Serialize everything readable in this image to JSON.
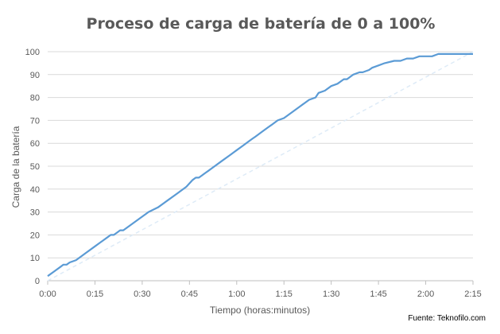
{
  "chart_data": {
    "type": "line",
    "title": "Proceso de carga de batería de 0 a 100%",
    "xlabel": "Tiempo (horas:minutos)",
    "ylabel": "Carga de la batería",
    "source": "Fuente: Teknofilo.com",
    "x_ticks": [
      "0:00",
      "0:15",
      "0:30",
      "0:45",
      "1:00",
      "1:15",
      "1:30",
      "1:45",
      "2:00",
      "2:15"
    ],
    "x_range_minutes": [
      0,
      135
    ],
    "y_ticks": [
      "0",
      "10",
      "20",
      "30",
      "40",
      "50",
      "60",
      "70",
      "80",
      "90",
      "100"
    ],
    "ylim": [
      0,
      100
    ],
    "grid": true,
    "series": [
      {
        "style": "solid",
        "color": "#5b9bd5",
        "x": [
          0,
          2,
          4,
          5,
          6,
          7,
          9,
          12,
          15,
          19,
          20,
          21,
          22,
          23,
          24,
          27,
          30,
          31,
          32,
          35,
          38,
          41,
          44,
          46,
          47,
          48,
          49,
          50,
          51,
          52,
          55,
          58,
          59,
          60,
          62,
          64,
          65,
          66,
          68,
          70,
          71,
          73,
          75,
          76,
          78,
          80,
          81,
          83,
          85,
          86,
          88,
          90,
          92,
          94,
          95,
          97,
          99,
          100,
          102,
          103,
          105,
          107,
          110,
          112,
          114,
          116,
          118,
          120,
          121,
          122,
          124,
          126,
          128,
          129,
          130,
          132,
          135
        ],
        "y": [
          2,
          4,
          6,
          7,
          7,
          8,
          9,
          12,
          15,
          19,
          20,
          20,
          21,
          22,
          22,
          25,
          28,
          29,
          30,
          32,
          35,
          38,
          41,
          44,
          45,
          45,
          46,
          47,
          48,
          49,
          52,
          55,
          56,
          57,
          59,
          61,
          62,
          63,
          65,
          67,
          68,
          70,
          71,
          72,
          74,
          76,
          77,
          79,
          80,
          82,
          83,
          85,
          86,
          88,
          88,
          90,
          91,
          91,
          92,
          93,
          94,
          95,
          96,
          96,
          97,
          97,
          98,
          98,
          98,
          98,
          99,
          99,
          99,
          99,
          99,
          99,
          99
        ]
      },
      {
        "style": "dashed",
        "color": "#deebf7",
        "x": [
          0,
          135
        ],
        "y": [
          0,
          100
        ]
      }
    ]
  }
}
